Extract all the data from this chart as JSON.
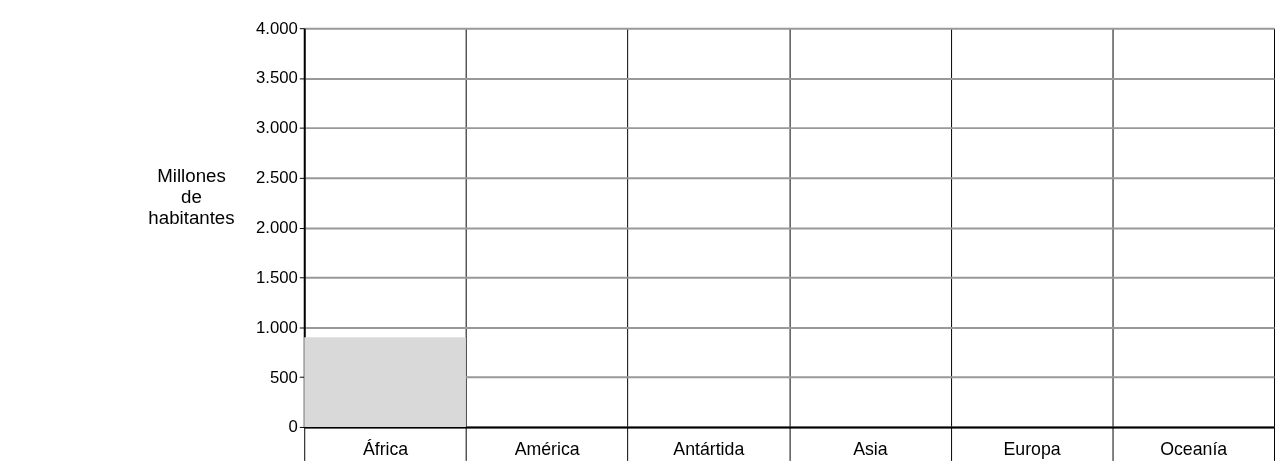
{
  "chart_data": {
    "type": "bar",
    "ylabel": "Millones de habitantes",
    "categories": [
      "África",
      "América",
      "Antártida",
      "Asia",
      "Europa",
      "Oceanía"
    ],
    "values": [
      900,
      null,
      null,
      null,
      null,
      null
    ],
    "color": "#d9d9d9",
    "ylim": [
      0,
      4000
    ],
    "yticks": [
      0,
      500,
      {
        "value": 1000,
        "label": "1.000"
      },
      {
        "value": 1500,
        "label": "1.500"
      },
      {
        "value": 2000,
        "label": "2.000"
      },
      {
        "value": 2500,
        "label": "2.500"
      },
      {
        "value": 3000,
        "label": "3.000"
      },
      {
        "value": 3500,
        "label": "3.500"
      },
      {
        "value": 4000,
        "label": "4.000"
      }
    ],
    "grid": true
  }
}
